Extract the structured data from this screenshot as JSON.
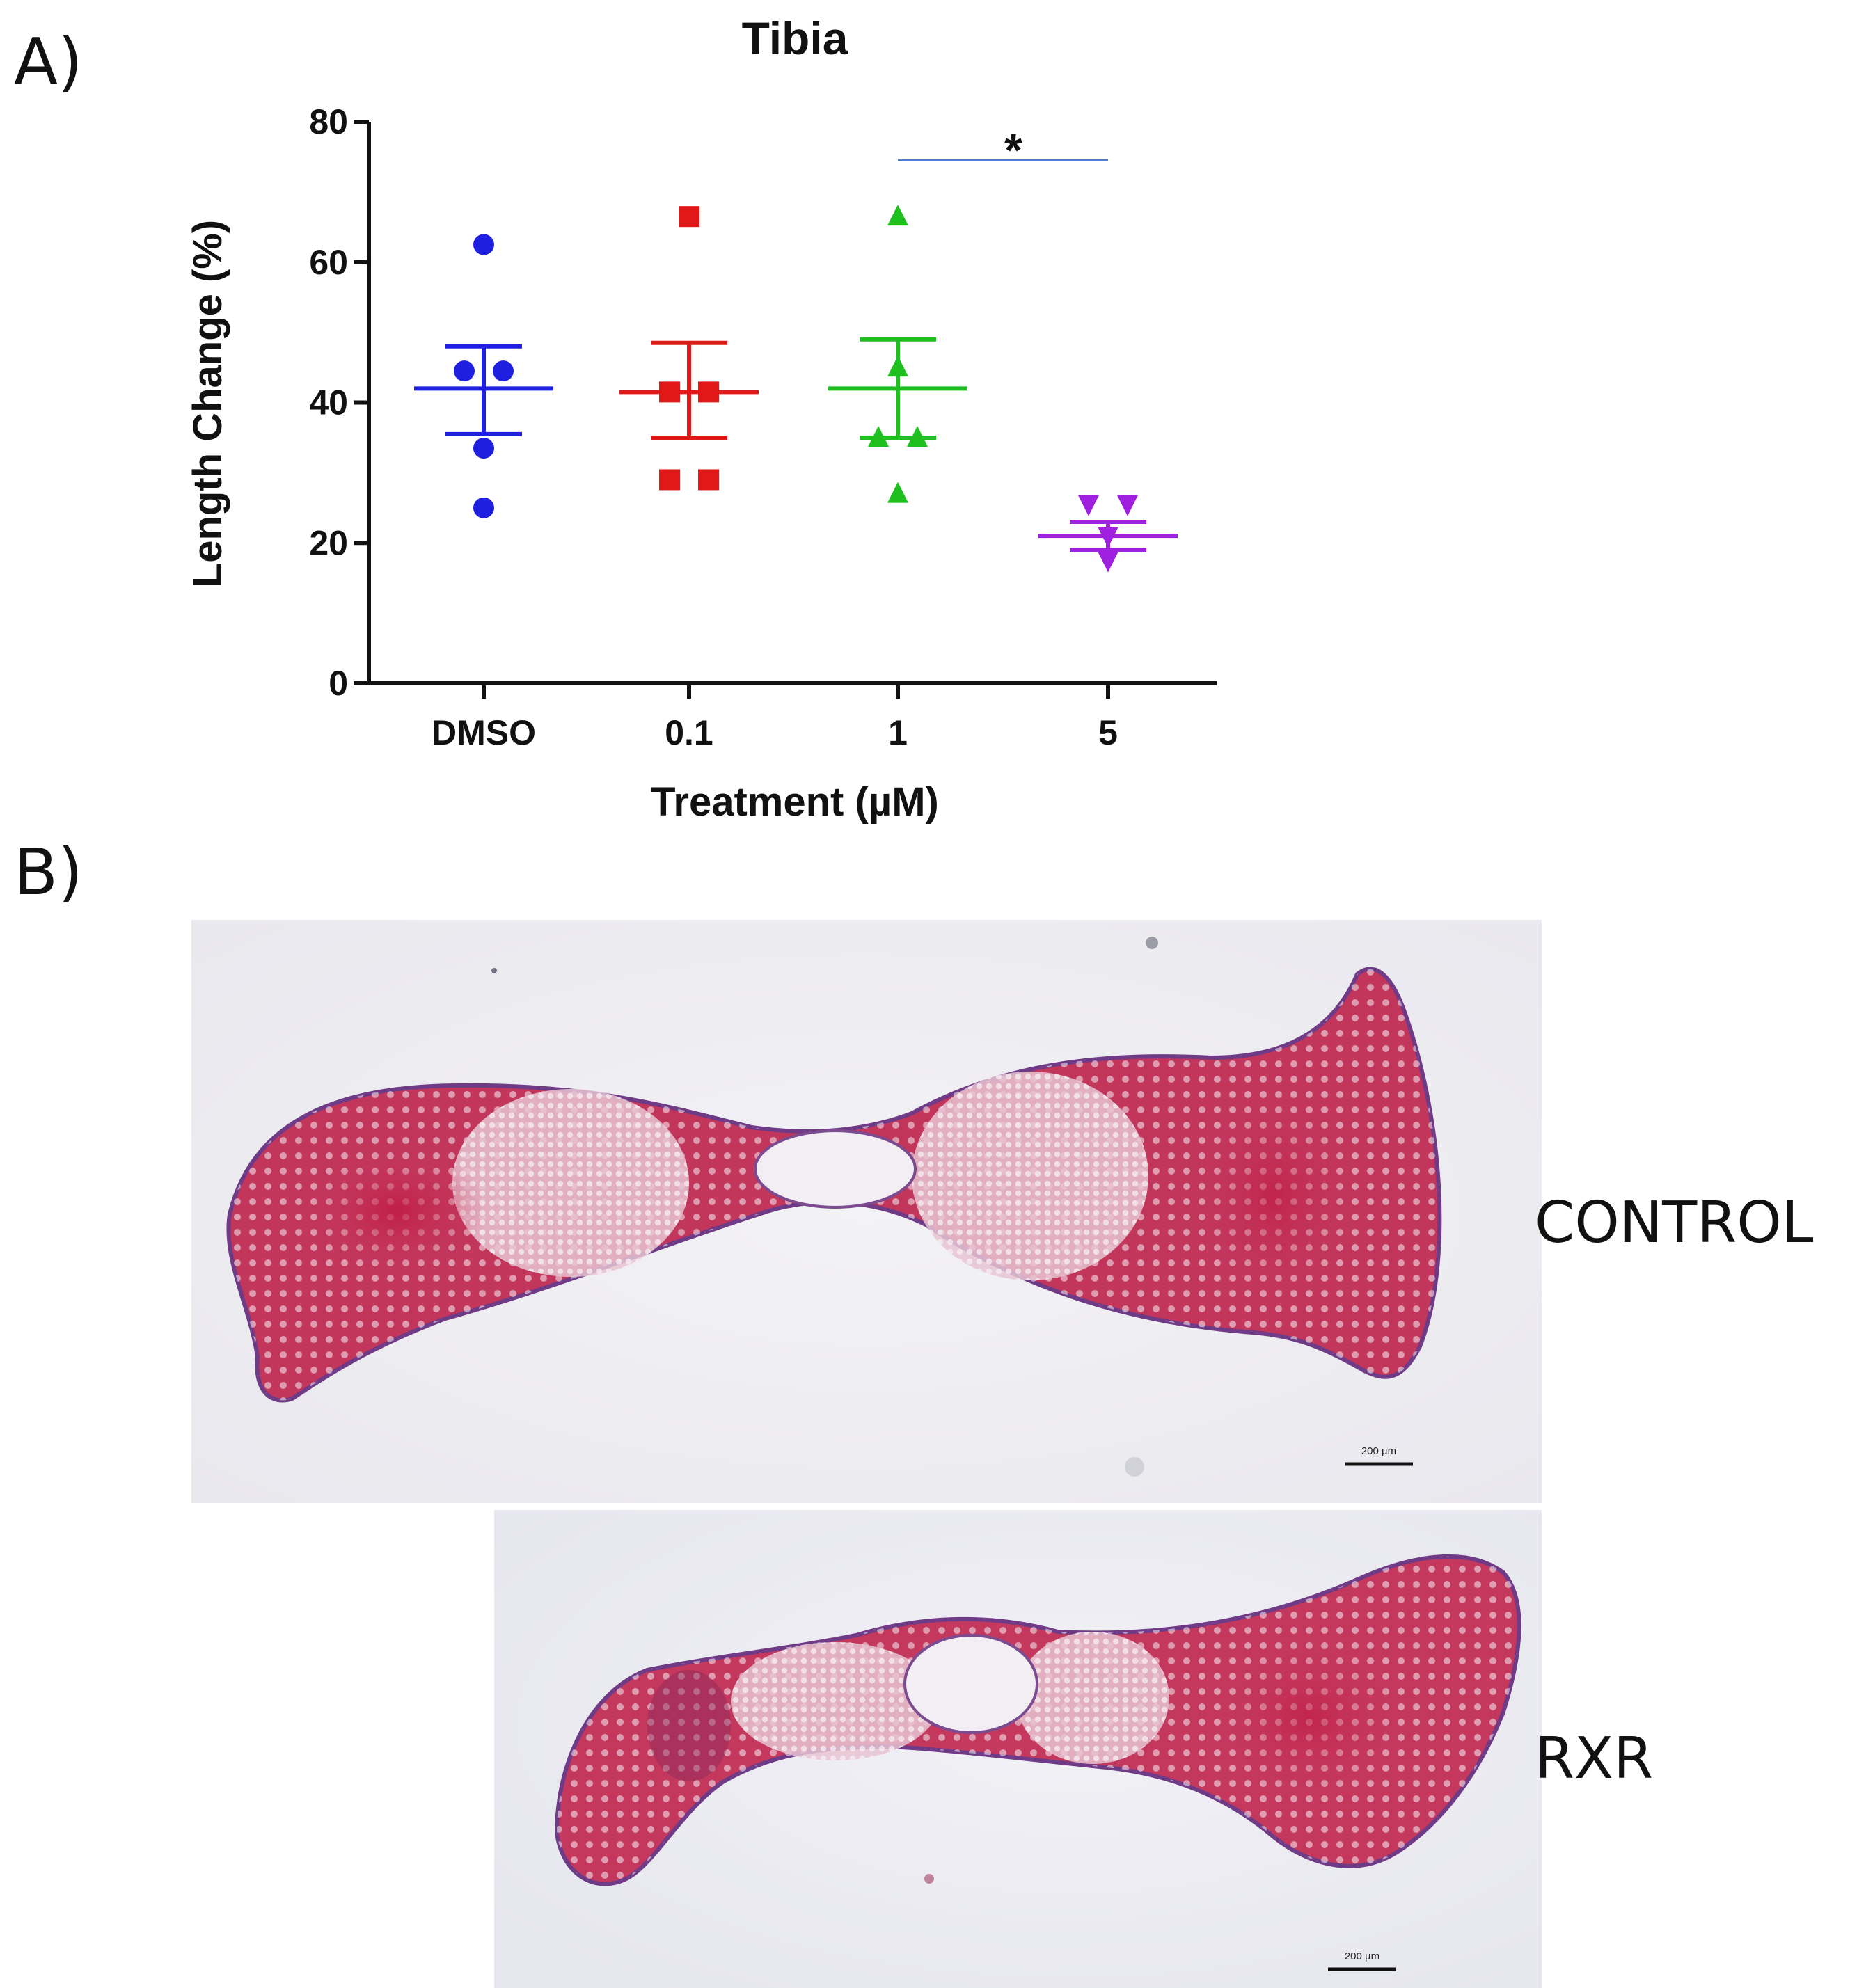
{
  "panels": {
    "a_label": "A)",
    "b_label": "B)"
  },
  "chart_data": {
    "type": "scatter",
    "title": "Tibia",
    "xlabel": "Treatment (µM)",
    "ylabel": "Length Change (%)",
    "ylim": [
      0,
      80
    ],
    "yticks": [
      0,
      20,
      40,
      60,
      80
    ],
    "categories": [
      "DMSO",
      "0.1",
      "1",
      "5"
    ],
    "grid": false,
    "series": [
      {
        "category": "DMSO",
        "marker": "circle",
        "color": "#1f1fe0",
        "points": [
          62.5,
          44.5,
          44.5,
          33.5,
          25
        ],
        "mean": 42,
        "sem_low": 35.5,
        "sem_high": 48
      },
      {
        "category": "0.1",
        "marker": "square",
        "color": "#e01818",
        "points": [
          66.5,
          41.5,
          41.5,
          29,
          29
        ],
        "mean": 41.5,
        "sem_low": 35,
        "sem_high": 48.5
      },
      {
        "category": "1",
        "marker": "triangle-up",
        "color": "#1fbf1f",
        "points": [
          66.5,
          45,
          35,
          35,
          27
        ],
        "mean": 42,
        "sem_low": 35,
        "sem_high": 49
      },
      {
        "category": "5",
        "marker": "triangle-down",
        "color": "#a020e0",
        "points": [
          25.5,
          25.5,
          21,
          17.5
        ],
        "mean": 21,
        "sem_low": 19,
        "sem_high": 23
      }
    ],
    "significance": {
      "from": "1",
      "to": "5",
      "y": 74.5,
      "label": "*"
    }
  },
  "micrographs": [
    {
      "label": "CONTROL",
      "scale_bar": "200 µm"
    },
    {
      "label": "RXR",
      "scale_bar": "200 µm"
    }
  ]
}
